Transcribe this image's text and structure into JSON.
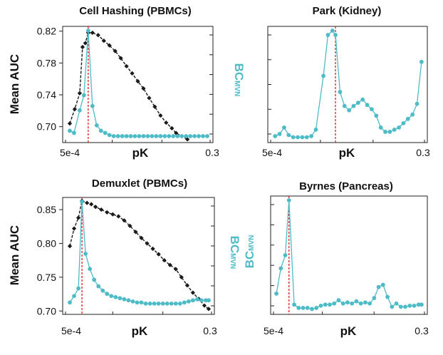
{
  "chart_data": [
    {
      "id": "p1",
      "type": "line",
      "title": "Cell Hashing (PBMCs)",
      "xlabel": "pK",
      "ylabel": "Mean AUC",
      "y2label_main": "BC",
      "y2label_sub": "MVN",
      "xlim": [
        0,
        1
      ],
      "x_tick_labels": [
        "5e-4",
        "0.3"
      ],
      "ylim": [
        0.68,
        0.826
      ],
      "y_ticks": [
        0.7,
        0.74,
        0.78,
        0.82
      ],
      "y_tick_labels": [
        "0.70",
        "0.74",
        "0.78",
        "0.82"
      ],
      "optimal_pk_x": 0.15,
      "series": [
        {
          "name": "Mean AUC",
          "color": "#1a1a1a",
          "x": [
            0.02,
            0.055,
            0.09,
            0.11,
            0.13,
            0.15,
            0.18,
            0.22,
            0.26,
            0.3,
            0.34,
            0.38,
            0.42,
            0.46,
            0.5,
            0.54,
            0.58,
            0.62,
            0.66,
            0.7,
            0.74,
            0.77,
            0.81,
            0.85
          ],
          "y": [
            0.704,
            0.722,
            0.742,
            0.8,
            0.805,
            0.818,
            0.818,
            0.815,
            0.808,
            0.802,
            0.795,
            0.786,
            0.776,
            0.767,
            0.757,
            0.748,
            0.736,
            0.725,
            0.714,
            0.705,
            0.698,
            0.692,
            0.688,
            0.684
          ]
        },
        {
          "name": "BCmvn",
          "color": "#4DBCC7",
          "x": [
            0.02,
            0.05,
            0.09,
            0.12,
            0.15,
            0.18,
            0.21,
            0.24,
            0.27,
            0.3,
            0.33,
            0.36,
            0.39,
            0.42,
            0.45,
            0.48,
            0.51,
            0.54,
            0.57,
            0.6,
            0.63,
            0.66,
            0.69,
            0.72,
            0.75,
            0.78,
            0.81,
            0.84,
            0.87,
            0.9,
            0.93,
            0.96,
            0.99
          ],
          "y": [
            0.07,
            0.05,
            0.26,
            0.4,
            1.0,
            0.3,
            0.12,
            0.07,
            0.05,
            0.03,
            0.02,
            0.02,
            0.02,
            0.02,
            0.02,
            0.02,
            0.02,
            0.02,
            0.02,
            0.02,
            0.02,
            0.02,
            0.02,
            0.02,
            0.02,
            0.02,
            0.02,
            0.02,
            0.02,
            0.02,
            0.02,
            0.02,
            0.02
          ]
        }
      ]
    },
    {
      "id": "p2",
      "type": "line",
      "title": "Park (Kidney)",
      "xlabel": "pK",
      "y2label_main": "",
      "y2label_sub": "",
      "xlim": [
        0,
        1
      ],
      "x_tick_labels": [
        "5e-4",
        "0.3"
      ],
      "y_tick_count": 5,
      "optimal_pk_x": 0.42,
      "series": [
        {
          "name": "BCmvn",
          "color": "#4DBCC7",
          "x": [
            0.02,
            0.05,
            0.08,
            0.11,
            0.14,
            0.17,
            0.2,
            0.23,
            0.26,
            0.29,
            0.34,
            0.37,
            0.4,
            0.42,
            0.45,
            0.48,
            0.51,
            0.54,
            0.57,
            0.6,
            0.63,
            0.66,
            0.69,
            0.72,
            0.75,
            0.78,
            0.81,
            0.84,
            0.87,
            0.9,
            0.93,
            0.96,
            0.99
          ],
          "y": [
            0.02,
            0.04,
            0.1,
            0.03,
            0.01,
            0.01,
            0.01,
            0.01,
            0.02,
            0.08,
            0.58,
            0.96,
            1.0,
            0.96,
            0.43,
            0.3,
            0.26,
            0.3,
            0.33,
            0.36,
            0.31,
            0.27,
            0.21,
            0.1,
            0.06,
            0.06,
            0.08,
            0.1,
            0.14,
            0.18,
            0.22,
            0.32,
            0.71
          ]
        }
      ]
    },
    {
      "id": "p3",
      "type": "line",
      "title": "Demuxlet (PBMCs)",
      "xlabel": "pK",
      "ylabel": "Mean AUC",
      "y2label_main": "BC",
      "y2label_sub": "MVN",
      "xlim": [
        0,
        1
      ],
      "x_tick_labels": [
        "5e-4",
        "0.3"
      ],
      "ylim": [
        0.695,
        0.868
      ],
      "y_ticks": [
        0.7,
        0.75,
        0.8,
        0.85
      ],
      "y_tick_labels": [
        "0.70",
        "0.75",
        "0.80",
        "0.85"
      ],
      "optimal_pk_x": 0.105,
      "series": [
        {
          "name": "Mean AUC",
          "color": "#1a1a1a",
          "x": [
            0.02,
            0.05,
            0.08,
            0.105,
            0.14,
            0.17,
            0.2,
            0.24,
            0.28,
            0.32,
            0.36,
            0.4,
            0.44,
            0.48,
            0.52,
            0.56,
            0.6,
            0.64,
            0.68,
            0.72,
            0.76,
            0.8,
            0.84,
            0.88,
            0.92,
            0.96,
            0.99
          ],
          "y": [
            0.796,
            0.822,
            0.838,
            0.863,
            0.86,
            0.858,
            0.854,
            0.85,
            0.846,
            0.843,
            0.84,
            0.834,
            0.826,
            0.817,
            0.808,
            0.8,
            0.792,
            0.784,
            0.775,
            0.768,
            0.762,
            0.75,
            0.738,
            0.727,
            0.718,
            0.708,
            0.703
          ]
        },
        {
          "name": "BCmvn",
          "color": "#4DBCC7",
          "x": [
            0.02,
            0.05,
            0.08,
            0.105,
            0.13,
            0.16,
            0.19,
            0.22,
            0.25,
            0.28,
            0.31,
            0.34,
            0.37,
            0.4,
            0.43,
            0.46,
            0.49,
            0.52,
            0.55,
            0.58,
            0.61,
            0.64,
            0.67,
            0.7,
            0.73,
            0.76,
            0.79,
            0.82,
            0.85,
            0.88,
            0.91,
            0.94,
            0.97,
            0.99
          ],
          "y": [
            0.07,
            0.13,
            0.2,
            1.0,
            0.52,
            0.38,
            0.28,
            0.22,
            0.18,
            0.15,
            0.13,
            0.12,
            0.11,
            0.1,
            0.09,
            0.08,
            0.07,
            0.07,
            0.06,
            0.06,
            0.06,
            0.06,
            0.06,
            0.06,
            0.06,
            0.06,
            0.06,
            0.07,
            0.08,
            0.09,
            0.1,
            0.09,
            0.09,
            0.09
          ]
        }
      ]
    },
    {
      "id": "p4",
      "type": "line",
      "title": "Byrnes (Pancreas)",
      "xlabel": "pK",
      "y2label_main": "BC",
      "y2label_sub": "MVN",
      "xlim": [
        0,
        1
      ],
      "x_tick_labels": [
        "5e-4",
        "0.3"
      ],
      "y_tick_count": 6,
      "optimal_pk_x": 0.095,
      "series": [
        {
          "name": "BCmvn",
          "color": "#4DBCC7",
          "x": [
            0.01,
            0.04,
            0.07,
            0.095,
            0.13,
            0.16,
            0.19,
            0.22,
            0.25,
            0.28,
            0.31,
            0.34,
            0.37,
            0.4,
            0.43,
            0.46,
            0.49,
            0.52,
            0.55,
            0.58,
            0.61,
            0.64,
            0.67,
            0.7,
            0.73,
            0.76,
            0.79,
            0.82,
            0.85,
            0.88,
            0.91,
            0.94,
            0.97,
            0.99
          ],
          "y": [
            0.15,
            0.38,
            0.5,
            1.0,
            0.05,
            0.02,
            0.02,
            0.02,
            0.01,
            0.02,
            0.04,
            0.05,
            0.05,
            0.06,
            0.09,
            0.06,
            0.07,
            0.06,
            0.08,
            0.06,
            0.07,
            0.06,
            0.11,
            0.21,
            0.23,
            0.12,
            0.03,
            0.06,
            0.03,
            0.03,
            0.04,
            0.04,
            0.05,
            0.05
          ]
        }
      ]
    }
  ]
}
